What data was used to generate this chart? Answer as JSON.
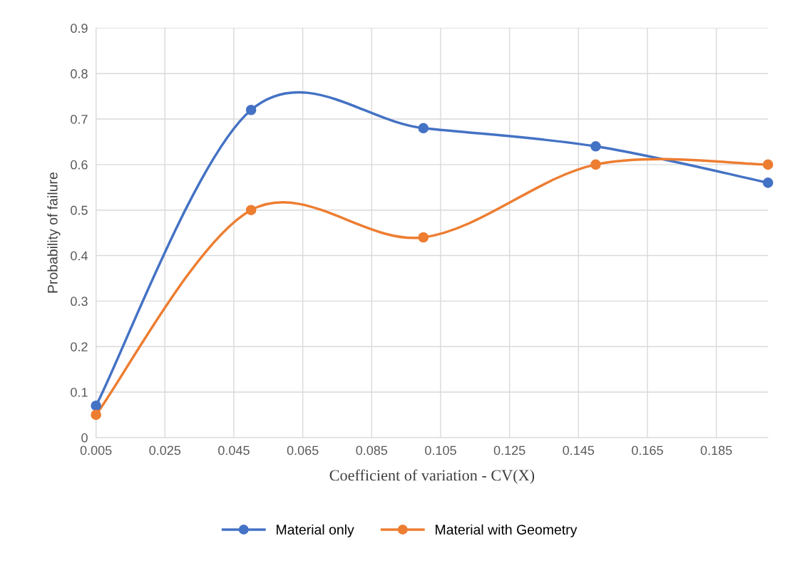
{
  "chart_data": {
    "type": "line",
    "xlabel": "Coefficient of variation - CV(X)",
    "ylabel": "Probability of failure",
    "x": [
      0.005,
      0.05,
      0.1,
      0.15,
      0.2
    ],
    "series": [
      {
        "name": "Material only",
        "color": "#4472c4",
        "values": [
          0.07,
          0.72,
          0.68,
          0.64,
          0.56
        ]
      },
      {
        "name": "Material with Geometry",
        "color": "#ed7d31",
        "values": [
          0.05,
          0.5,
          0.44,
          0.6,
          0.6
        ]
      }
    ],
    "xlim": [
      0.005,
      0.2
    ],
    "xticks": [
      0.005,
      0.025,
      0.045,
      0.065,
      0.085,
      0.105,
      0.125,
      0.145,
      0.165,
      0.185
    ],
    "ylim": [
      0,
      0.9
    ],
    "yticks": [
      0,
      0.1,
      0.2,
      0.3,
      0.4,
      0.5,
      0.6,
      0.7,
      0.8,
      0.9
    ],
    "grid": true,
    "legend": "bottom",
    "marker": "circle",
    "line_style": "solid"
  }
}
